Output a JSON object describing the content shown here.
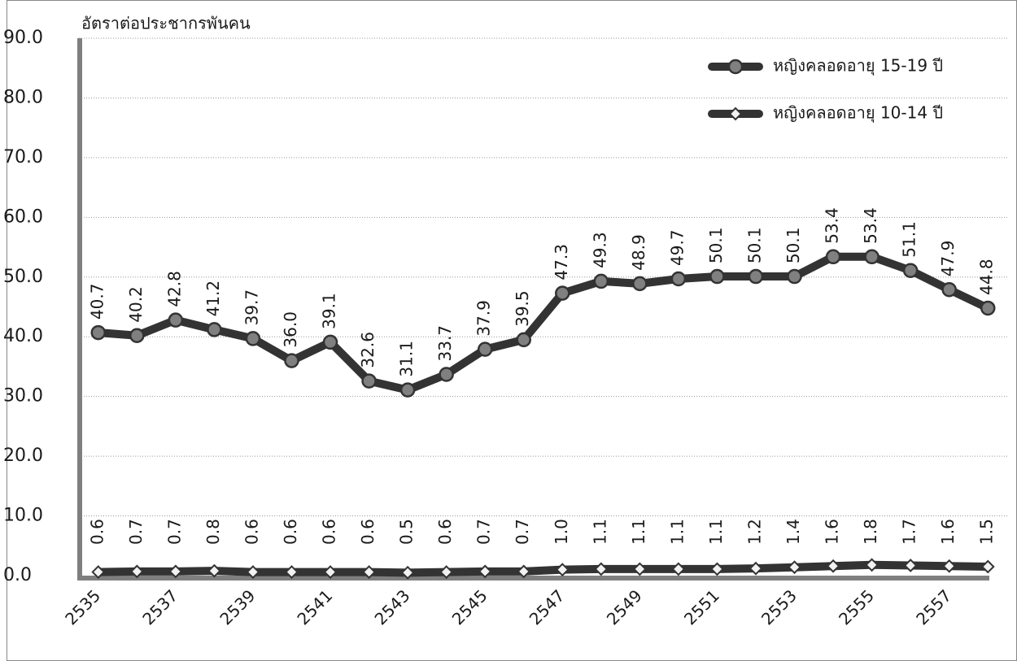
{
  "chart_data": {
    "type": "line",
    "ylabel": "อัตราต่อประชากรพันคน",
    "categories": [
      "2535",
      null,
      "2537",
      null,
      "2539",
      null,
      "2541",
      null,
      "2543",
      null,
      "2545",
      null,
      "2547",
      null,
      "2549",
      null,
      "2551",
      null,
      "2553",
      null,
      "2555",
      null,
      "2557",
      null
    ],
    "series": [
      {
        "name": "หญิงคลอดอายุ 15-19 ปี",
        "color": "#333333",
        "marker": "circle",
        "marker_color": "#808080",
        "values": [
          40.7,
          40.2,
          42.8,
          41.2,
          39.7,
          36.0,
          39.1,
          32.6,
          31.1,
          33.7,
          37.9,
          39.5,
          47.3,
          49.3,
          48.9,
          49.7,
          50.1,
          50.1,
          50.1,
          53.4,
          53.4,
          51.1,
          47.9,
          44.8
        ],
        "value_labels": [
          "40.7",
          "40.2",
          "42.8",
          "41.2",
          "39.7",
          "36.0",
          "39.1",
          "32.6",
          "31.1",
          "33.7",
          "37.9",
          "39.5",
          "47.3",
          "49.3",
          "48.9",
          "49.7",
          "50.1",
          "50.1",
          "50.1",
          "53.4",
          "53.4",
          "51.1",
          "47.9",
          "44.8"
        ]
      },
      {
        "name": "หญิงคลอดอายุ 10-14 ปี",
        "color": "#333333",
        "marker": "diamond",
        "marker_color": "#f2f2f2",
        "values": [
          0.6,
          0.7,
          0.7,
          0.8,
          0.6,
          0.6,
          0.6,
          0.6,
          0.5,
          0.6,
          0.7,
          0.7,
          1.0,
          1.1,
          1.1,
          1.1,
          1.1,
          1.2,
          1.4,
          1.6,
          1.8,
          1.7,
          1.6,
          1.5
        ],
        "value_labels": [
          "0.6",
          "0.7",
          "0.7",
          "0.8",
          "0.6",
          "0.6",
          "0.6",
          "0.6",
          "0.5",
          "0.6",
          "0.7",
          "0.7",
          "1.0",
          "1.1",
          "1.1",
          "1.1",
          "1.1",
          "1.2",
          "1.4",
          "1.6",
          "1.8",
          "1.7",
          "1.6",
          "1.5"
        ]
      }
    ],
    "ylim": [
      0,
      90
    ],
    "yticks": [
      {
        "value": 0,
        "label": "0.0"
      },
      {
        "value": 10,
        "label": "10.0"
      },
      {
        "value": 20,
        "label": "20.0"
      },
      {
        "value": 30,
        "label": "30.0"
      },
      {
        "value": 40,
        "label": "40.0"
      },
      {
        "value": 50,
        "label": "50.0"
      },
      {
        "value": 60,
        "label": "60.0"
      },
      {
        "value": 70,
        "label": "70.0"
      },
      {
        "value": 80,
        "label": "80.0"
      },
      {
        "value": 90,
        "label": "90.0"
      }
    ],
    "grid": true,
    "legend": "top-right"
  }
}
